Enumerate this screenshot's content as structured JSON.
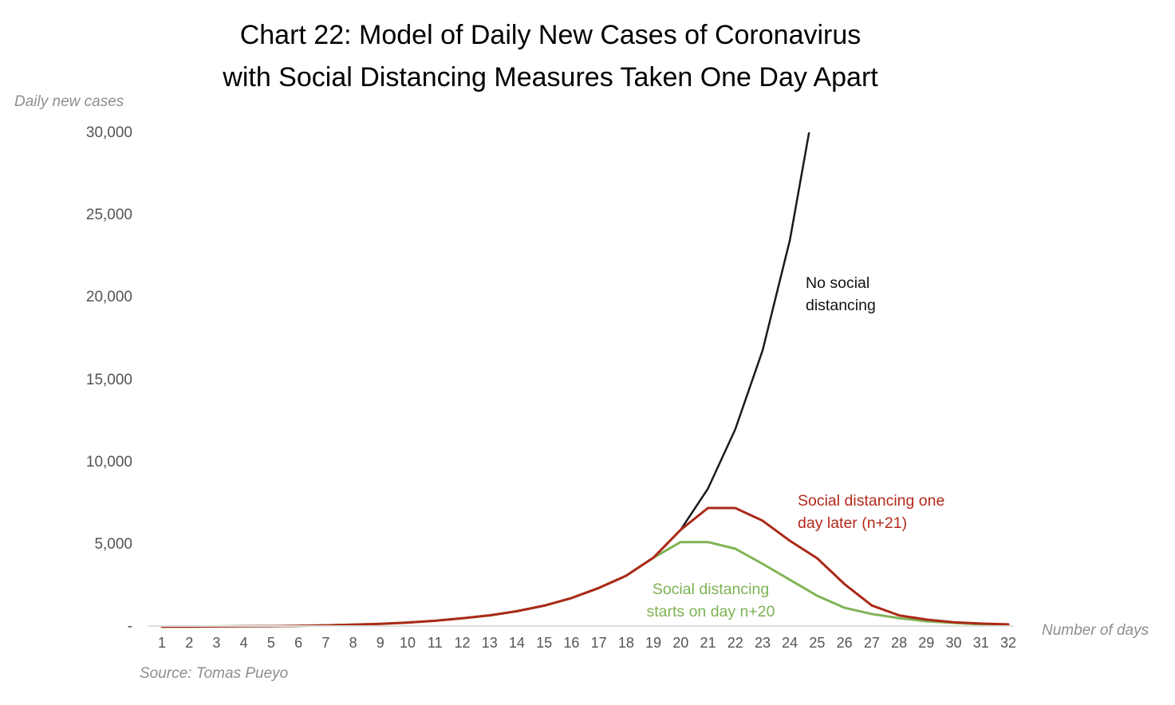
{
  "title": {
    "line1": "Chart 22: Model of Daily New Cases of Coronavirus",
    "line2": "with Social Distancing Measures Taken One Day Apart"
  },
  "axes": {
    "y_label": "Daily new cases",
    "x_label": "Number of days",
    "y_ticks": [
      {
        "label": "30,000",
        "value": 30000
      },
      {
        "label": "25,000",
        "value": 25000
      },
      {
        "label": "20,000",
        "value": 20000
      },
      {
        "label": "15,000",
        "value": 15000
      },
      {
        "label": "10,000",
        "value": 10000
      },
      {
        "label": "5,000",
        "value": 5000
      },
      {
        "label": "-",
        "value": 0
      }
    ],
    "x_ticks": [
      1,
      2,
      3,
      4,
      5,
      6,
      7,
      8,
      9,
      10,
      11,
      12,
      13,
      14,
      15,
      16,
      17,
      18,
      19,
      20,
      21,
      22,
      23,
      24,
      25,
      26,
      27,
      28,
      29,
      30,
      31,
      32
    ]
  },
  "annotations": {
    "black": {
      "line1": "No social",
      "line2": "distancing",
      "color": "#111111"
    },
    "red": {
      "line1": "Social distancing one",
      "line2": "day later (n+21)",
      "color": "#b3291b"
    },
    "green": {
      "line1": "Social distancing",
      "line2": "starts on day n+20",
      "color": "#7db253"
    }
  },
  "source": "Source: Tomas Pueyo",
  "chart_data": {
    "type": "line",
    "title": "Chart 22: Model of Daily New Cases of Coronavirus with Social Distancing Measures Taken One Day Apart",
    "xlabel": "Number of days",
    "ylabel": "Daily new cases",
    "xlim": [
      1,
      32
    ],
    "ylim": [
      0,
      30000
    ],
    "grid": false,
    "legend_position": "inline-annotations",
    "x": [
      1,
      2,
      3,
      4,
      5,
      6,
      7,
      8,
      9,
      10,
      11,
      12,
      13,
      14,
      15,
      16,
      17,
      18,
      19,
      20,
      21,
      22,
      23,
      24,
      25,
      26,
      27,
      28,
      29,
      30,
      31,
      32
    ],
    "series": [
      {
        "name": "No social distancing",
        "color": "#1a1a1a",
        "stroke_width": 2.5,
        "z": 1,
        "values": [
          10,
          15,
          22,
          32,
          45,
          65,
          92,
          130,
          185,
          260,
          370,
          525,
          700,
          950,
          1290,
          1750,
          2360,
          3100,
          4200,
          5900,
          8400,
          12000,
          16800,
          23500,
          32800
        ]
      },
      {
        "name": "Social distancing one day later (n+21)",
        "color": "#ab2918",
        "stroke_width": 3,
        "z": 3,
        "values": [
          10,
          15,
          22,
          32,
          45,
          65,
          92,
          130,
          185,
          260,
          370,
          525,
          700,
          950,
          1290,
          1750,
          2360,
          3100,
          4200,
          5900,
          7220,
          7220,
          6450,
          5230,
          4170,
          2600,
          1300,
          700,
          440,
          280,
          200,
          150
        ]
      },
      {
        "name": "Social distancing starts on day n+20",
        "color": "#80b355",
        "stroke_width": 3,
        "z": 2,
        "values": [
          10,
          15,
          22,
          32,
          45,
          65,
          92,
          130,
          185,
          260,
          370,
          525,
          700,
          950,
          1290,
          1750,
          2360,
          3100,
          4200,
          5150,
          5150,
          4750,
          3830,
          2860,
          1890,
          1160,
          780,
          530,
          340,
          240,
          150,
          120
        ]
      }
    ]
  }
}
